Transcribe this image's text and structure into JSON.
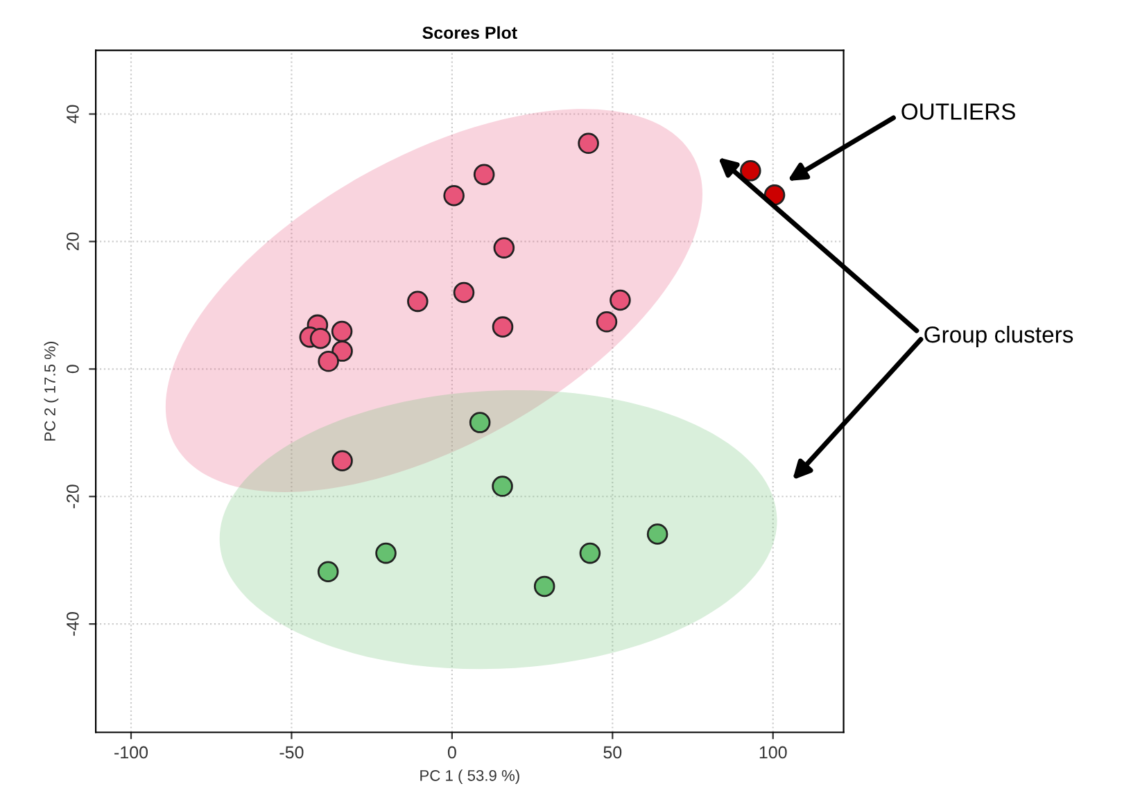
{
  "chart_data": {
    "type": "scatter",
    "title": "Scores Plot",
    "xlabel": "PC 1 ( 53.9 %)",
    "ylabel": "PC 2 ( 17.5 %)",
    "xlim": [
      -111,
      122
    ],
    "ylim": [
      -57,
      50
    ],
    "xticks": [
      -100,
      -50,
      0,
      50,
      100
    ],
    "yticks": [
      -40,
      -20,
      0,
      20,
      40
    ],
    "grid": true,
    "legend": false,
    "marker": "circle",
    "series": [
      {
        "color": "#e8557a",
        "x": [
          42.5,
          10.0,
          0.6,
          16.2,
          3.7,
          -10.7,
          -34.3,
          -41.9,
          -44.3,
          -41.0,
          -34.2,
          -38.5,
          15.8,
          48.2,
          52.4,
          -34.2
        ],
        "values": [
          35.4,
          30.5,
          27.2,
          19.0,
          12.0,
          10.6,
          5.9,
          6.9,
          5.0,
          4.8,
          2.8,
          1.2,
          6.6,
          7.4,
          10.8,
          -14.4
        ]
      },
      {
        "color": "#cc0000",
        "x": [
          93.0,
          100.5
        ],
        "values": [
          31.1,
          27.3
        ]
      },
      {
        "color": "#66c070",
        "x": [
          8.7,
          15.7,
          64.0,
          43.0,
          28.8,
          -20.6,
          -38.6
        ],
        "values": [
          -8.4,
          -18.4,
          -25.9,
          -28.9,
          -34.1,
          -28.9,
          -31.8
        ]
      }
    ],
    "annotations": [
      "OUTLIERS",
      "Group clusters"
    ]
  }
}
